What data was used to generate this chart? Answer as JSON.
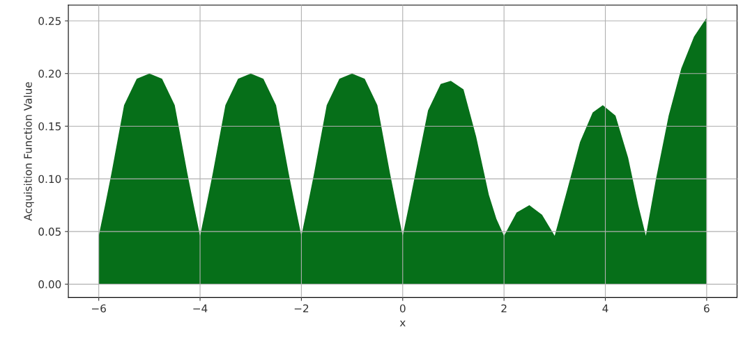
{
  "chart_data": {
    "type": "area",
    "xlabel": "x",
    "ylabel": "Acquisition Function Value",
    "x": [
      -6,
      -5.875,
      -5.75,
      -5.5,
      -5.25,
      -5,
      -4.75,
      -4.5,
      -4.25,
      -4.125,
      -4,
      -3.875,
      -3.75,
      -3.5,
      -3.25,
      -3,
      -2.75,
      -2.5,
      -2.25,
      -2.125,
      -2,
      -1.875,
      -1.75,
      -1.5,
      -1.25,
      -1,
      -0.75,
      -0.5,
      -0.25,
      -0.125,
      0,
      0.125,
      0.25,
      0.5,
      0.75,
      0.95,
      1.2,
      1.45,
      1.7,
      1.85,
      2,
      2.25,
      2.5,
      2.75,
      3,
      3.25,
      3.5,
      3.75,
      3.95,
      4.2,
      4.45,
      4.65,
      4.8,
      5,
      5.25,
      5.5,
      5.75,
      6
    ],
    "series": [
      {
        "color": "#066f19",
        "values": [
          0.046,
          0.075,
          0.105,
          0.17,
          0.195,
          0.2,
          0.195,
          0.17,
          0.105,
          0.075,
          0.046,
          0.075,
          0.105,
          0.17,
          0.195,
          0.2,
          0.195,
          0.17,
          0.105,
          0.075,
          0.046,
          0.075,
          0.105,
          0.17,
          0.195,
          0.2,
          0.195,
          0.17,
          0.105,
          0.075,
          0.046,
          0.075,
          0.105,
          0.165,
          0.19,
          0.193,
          0.185,
          0.14,
          0.085,
          0.062,
          0.046,
          0.068,
          0.075,
          0.066,
          0.046,
          0.09,
          0.135,
          0.163,
          0.17,
          0.16,
          0.12,
          0.075,
          0.046,
          0.1,
          0.16,
          0.205,
          0.235,
          0.253
        ]
      }
    ],
    "xlim": [
      -6.6,
      6.6
    ],
    "ylim": [
      -0.0126,
      0.265
    ],
    "xticks": [
      {
        "value": -6,
        "label": "−6"
      },
      {
        "value": -4,
        "label": "−4"
      },
      {
        "value": -2,
        "label": "−2"
      },
      0,
      2,
      4,
      6
    ],
    "yticks": [
      {
        "value": 0,
        "label": "0.00"
      },
      {
        "value": 0.05,
        "label": "0.05"
      },
      {
        "value": 0.1,
        "label": "0.10"
      },
      {
        "value": 0.15,
        "label": "0.15"
      },
      {
        "value": 0.2,
        "label": "0.20"
      },
      {
        "value": 0.25,
        "label": "0.25"
      }
    ],
    "grid": true
  }
}
